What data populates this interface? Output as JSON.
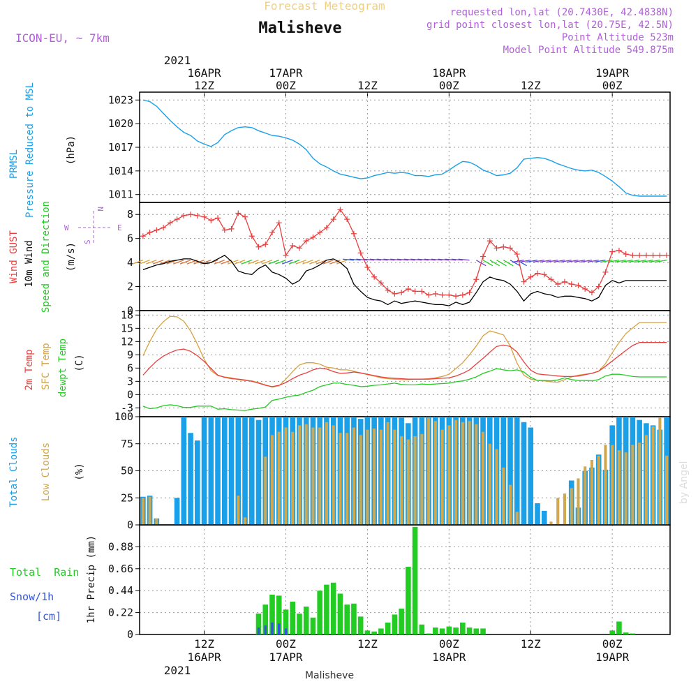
{
  "header": {
    "model": "ICON-EU, ~ 7km",
    "subtitle": "Forecast Meteogram",
    "station": "Malisheve",
    "requested": "requested lon,lat (20.7430E, 42.4838N)",
    "closest": "grid point closest lon,lat (20.75E, 42.5N)",
    "altitude": "Point Altitude 523m",
    "model_altitude": "Model Point Altitude 549.875m"
  },
  "footer_station": "Malisheve",
  "credit": "by Angel",
  "colors": {
    "pressure": "#19a0e8",
    "gust": "#e84040",
    "wind": "#000000",
    "temp2m": "#e84040",
    "sfc": "#d8a040",
    "dewpt": "#22cc22",
    "total_cloud": "#1aa0e8",
    "low_cloud": "#d0a850",
    "rain": "#22cc22",
    "snow": "#3355dd",
    "header_purple": "#b060d8",
    "subtitle": "#f0d080"
  },
  "top_axis": {
    "year": "2021",
    "labels": [
      {
        "t": 9,
        "l1": "16APR",
        "l2": "12Z"
      },
      {
        "t": 21,
        "l1": "17APR",
        "l2": "00Z"
      },
      {
        "t": 33,
        "l1": "",
        "l2": "12Z"
      },
      {
        "t": 45,
        "l1": "18APR",
        "l2": "00Z"
      },
      {
        "t": 57,
        "l1": "",
        "l2": "12Z"
      },
      {
        "t": 69,
        "l1": "19APR",
        "l2": "00Z"
      }
    ]
  },
  "bottom_axis": {
    "year": "2021",
    "labels": [
      {
        "t": 9,
        "l1": "12Z",
        "l2": "16APR"
      },
      {
        "t": 21,
        "l1": "00Z",
        "l2": "17APR"
      },
      {
        "t": 33,
        "l1": "12Z",
        "l2": ""
      },
      {
        "t": 45,
        "l1": "00Z",
        "l2": "18APR"
      },
      {
        "t": 57,
        "l1": "12Z",
        "l2": ""
      },
      {
        "t": 69,
        "l1": "00Z",
        "l2": "19APR"
      }
    ]
  },
  "panels": {
    "pressure": {
      "label_lines": [
        "PRMSL",
        "Pressure Reduced to MSL"
      ],
      "unit": "(hPa)"
    },
    "wind": {
      "label_gust": "Wind GUST",
      "label_wind": "10m Wind",
      "label_dir": "Speed and Direction",
      "unit": "(m/s)",
      "compass_n": "N",
      "compass_s": "S",
      "compass_w": "W",
      "compass_e": "E"
    },
    "temp": {
      "label_2m": "2m Temp",
      "label_sfc": "SFC Temp",
      "label_dew": "dewpt Temp",
      "unit": "(C)"
    },
    "cloud": {
      "label_total": "Total Clouds",
      "label_low": "Low Clouds",
      "unit": "(%)"
    },
    "precip": {
      "label_rain": "Total  Rain",
      "label_snow": "Snow/1h",
      "label_snow_unit": "[cm]",
      "unit": "1hr Precip (mm)"
    }
  },
  "chart_data": [
    {
      "type": "line",
      "title": "PRMSL Pressure Reduced to MSL",
      "ylabel": "(hPa)",
      "ylim": [
        1010,
        1024
      ],
      "yticks": [
        1011,
        1014,
        1017,
        1020,
        1023
      ],
      "x_start_hour_utc": 0,
      "x_step_hours": 1,
      "series": [
        {
          "name": "PRMSL",
          "x": [
            0,
            1,
            2,
            3,
            4,
            5,
            6,
            7,
            8,
            9,
            10,
            11,
            12,
            13,
            14,
            15,
            16,
            17,
            18,
            19,
            20,
            21,
            22,
            23,
            24,
            25,
            26,
            27,
            28,
            29,
            30,
            31,
            32,
            33,
            34,
            35,
            36,
            37,
            38,
            39,
            40,
            41,
            42,
            43,
            44,
            45,
            46,
            47,
            48,
            49,
            50,
            51,
            52,
            53,
            54,
            55,
            56,
            57,
            58,
            59,
            60,
            61,
            62,
            63,
            64,
            65,
            66,
            67,
            68,
            69,
            70,
            71,
            72,
            73,
            74,
            75,
            76,
            77
          ],
          "values": [
            1023,
            1022.8,
            1022.2,
            1021.3,
            1020.4,
            1019.6,
            1018.9,
            1018.5,
            1017.8,
            1017.4,
            1017.1,
            1017.6,
            1018.6,
            1019.1,
            1019.5,
            1019.6,
            1019.5,
            1019.1,
            1018.8,
            1018.5,
            1018.4,
            1018.2,
            1017.9,
            1017.4,
            1016.7,
            1015.6,
            1014.9,
            1014.5,
            1014,
            1013.6,
            1013.4,
            1013.2,
            1013,
            1013.1,
            1013.4,
            1013.6,
            1013.8,
            1013.7,
            1013.8,
            1013.7,
            1013.4,
            1013.4,
            1013.3,
            1013.5,
            1013.6,
            1014.1,
            1014.7,
            1015.2,
            1015.1,
            1014.7,
            1014.1,
            1013.8,
            1013.4,
            1013.5,
            1013.7,
            1014.4,
            1015.5,
            1015.6,
            1015.7,
            1015.6,
            1015.3,
            1014.9,
            1014.6,
            1014.3,
            1014.1,
            1014,
            1014.1,
            1013.8,
            1013.3,
            1012.7,
            1012,
            1011.2,
            1010.9,
            1010.8,
            1010.8,
            1010.8,
            1010.8,
            1010.8
          ]
        }
      ]
    },
    {
      "type": "line",
      "title": "Wind GUST / 10m Wind Speed and Direction",
      "ylabel": "(m/s)",
      "ylim": [
        0,
        9
      ],
      "yticks": [
        0,
        2,
        4,
        6,
        8
      ],
      "series": [
        {
          "name": "Wind GUST",
          "values": [
            6.2,
            6.5,
            6.7,
            6.9,
            7.3,
            7.6,
            7.9,
            8,
            7.9,
            7.8,
            7.5,
            7.7,
            6.7,
            6.8,
            8.1,
            7.8,
            6.2,
            5.3,
            5.5,
            6.5,
            7.3,
            4.6,
            5.4,
            5.2,
            5.8,
            6.1,
            6.5,
            6.9,
            7.6,
            8.4,
            7.6,
            6.4,
            4.8,
            3.6,
            2.8,
            2.3,
            1.7,
            1.4,
            1.5,
            1.8,
            1.6,
            1.6,
            1.3,
            1.4,
            1.3,
            1.3,
            1.2,
            1.3,
            1.5,
            2.6,
            4.5,
            5.8,
            5.2,
            5.3,
            5.2,
            4.7,
            2.4,
            2.8,
            3.1,
            3,
            2.6,
            2.2,
            2.4,
            2.2,
            2.1,
            1.8,
            1.5,
            2,
            3.2,
            4.9,
            5,
            4.7,
            4.6,
            4.6,
            4.6,
            4.6,
            4.6,
            4.6
          ]
        },
        {
          "name": "10m Wind",
          "values": [
            3.4,
            3.6,
            3.8,
            3.9,
            4.1,
            4.2,
            4.3,
            4.3,
            4.1,
            3.9,
            4.0,
            4.3,
            4.6,
            4.1,
            3.3,
            3.1,
            3.0,
            3.5,
            3.8,
            3.2,
            3.0,
            2.7,
            2.2,
            2.5,
            3.3,
            3.5,
            3.8,
            4.2,
            4.3,
            4.0,
            3.5,
            2.2,
            1.6,
            1.1,
            0.9,
            0.8,
            0.5,
            0.8,
            0.6,
            0.7,
            0.8,
            0.7,
            0.6,
            0.5,
            0.5,
            0.4,
            0.7,
            0.5,
            0.7,
            1.5,
            2.4,
            2.8,
            2.6,
            2.5,
            2.2,
            1.6,
            0.8,
            1.4,
            1.6,
            1.4,
            1.3,
            1.1,
            1.2,
            1.2,
            1.1,
            1.0,
            0.8,
            1.1,
            2.1,
            2.5,
            2.3,
            2.5,
            2.5,
            2.5,
            2.5,
            2.5,
            2.5,
            2.5
          ]
        }
      ]
    },
    {
      "type": "line",
      "title": "2m Temp / SFC Temp / dewpt Temp",
      "ylabel": "(C)",
      "ylim": [
        -5,
        19
      ],
      "yticks": [
        -3,
        0,
        3,
        6,
        9,
        12,
        15,
        18
      ],
      "series": [
        {
          "name": "2m Temp",
          "values": [
            4.4,
            6.1,
            7.6,
            8.7,
            9.5,
            10.1,
            10.3,
            9.8,
            8.8,
            7.5,
            5.9,
            4.4,
            3.9,
            3.6,
            3.5,
            3.3,
            3.0,
            2.6,
            2.1,
            1.8,
            2.1,
            2.7,
            3.6,
            4.4,
            4.9,
            5.6,
            6.0,
            5.8,
            5.2,
            4.8,
            4.9,
            5.1,
            4.9,
            4.6,
            4.3,
            4.0,
            3.8,
            3.7,
            3.6,
            3.5,
            3.5,
            3.5,
            3.5,
            3.6,
            3.7,
            3.8,
            4.2,
            4.8,
            5.6,
            6.9,
            8.2,
            9.6,
            10.9,
            11.2,
            10.9,
            9.6,
            7.4,
            5.5,
            4.7,
            4.5,
            4.4,
            4.2,
            4.1,
            4.1,
            4.2,
            4.5,
            4.8,
            5.3,
            6.4,
            7.6,
            8.8,
            10.0,
            11.1,
            11.8,
            11.8,
            11.8,
            11.8,
            11.8
          ]
        },
        {
          "name": "SFC Temp",
          "values": [
            8.8,
            12.0,
            14.8,
            16.5,
            17.7,
            17.6,
            16.6,
            14.4,
            11.4,
            8.0,
            5.4,
            4.3,
            4.0,
            3.8,
            3.4,
            3.2,
            3.1,
            2.7,
            2.2,
            1.7,
            2.0,
            3.5,
            5.2,
            6.7,
            7.2,
            7.2,
            6.9,
            6.2,
            6.0,
            5.6,
            5.6,
            5.3,
            4.9,
            4.5,
            4.2,
            3.8,
            3.6,
            3.5,
            3.4,
            3.4,
            3.5,
            3.5,
            3.6,
            3.8,
            4.1,
            4.6,
            5.9,
            7.2,
            9.0,
            11.0,
            13.3,
            14.4,
            14.0,
            13.5,
            11.0,
            7.1,
            4.4,
            3.5,
            3.2,
            3.1,
            2.9,
            2.8,
            3.4,
            4.0,
            4.4,
            4.6,
            4.8,
            5.3,
            7.0,
            9.5,
            11.8,
            13.8,
            15.1,
            16.3,
            16.3,
            16.3,
            16.3,
            16.3
          ]
        },
        {
          "name": "dewpt Temp",
          "values": [
            -2.6,
            -3.2,
            -3.0,
            -2.5,
            -2.3,
            -2.5,
            -2.9,
            -2.9,
            -2.6,
            -2.6,
            -2.6,
            -3.3,
            -3.2,
            -3.4,
            -3.5,
            -3.6,
            -3.3,
            -3.1,
            -2.8,
            -1.3,
            -1.0,
            -0.6,
            -0.3,
            -0.1,
            0.5,
            1.0,
            1.8,
            2.2,
            2.6,
            2.6,
            2.3,
            2.1,
            1.8,
            1.9,
            2.1,
            2.2,
            2.4,
            2.6,
            2.3,
            2.2,
            2.2,
            2.4,
            2.3,
            2.4,
            2.5,
            2.6,
            2.9,
            3.1,
            3.5,
            4.0,
            4.8,
            5.3,
            5.9,
            5.6,
            5.4,
            5.6,
            5.1,
            3.9,
            3.2,
            3.2,
            3.1,
            3.3,
            3.8,
            3.4,
            3.2,
            3.2,
            3.1,
            3.4,
            4.2,
            4.6,
            4.6,
            4.4,
            4.1,
            4.0,
            4.0,
            4.0,
            4.0,
            4.0
          ]
        }
      ]
    },
    {
      "type": "bar",
      "title": "Total Clouds / Low Clouds",
      "ylabel": "(%)",
      "ylim": [
        0,
        100
      ],
      "yticks": [
        0,
        25,
        50,
        75,
        100
      ],
      "series": [
        {
          "name": "Total Clouds",
          "values": [
            26,
            27,
            6,
            0,
            0,
            25,
            100,
            85,
            78,
            100,
            100,
            100,
            100,
            100,
            100,
            100,
            100,
            97,
            100,
            100,
            100,
            100,
            100,
            100,
            100,
            100,
            100,
            100,
            100,
            100,
            100,
            100,
            98,
            100,
            100,
            100,
            100,
            100,
            99,
            94,
            100,
            100,
            100,
            100,
            100,
            100,
            100,
            100,
            100,
            100,
            100,
            100,
            100,
            100,
            100,
            100,
            95,
            90,
            20,
            13,
            0,
            0,
            0,
            41,
            16,
            50,
            53,
            65,
            51,
            92,
            100,
            100,
            100,
            97,
            94,
            92,
            88,
            100
          ]
        },
        {
          "name": "Low Clouds",
          "values": [
            25,
            26,
            6,
            0,
            0,
            0,
            0,
            0,
            0,
            0,
            0,
            0,
            0,
            0,
            27,
            7,
            0,
            0,
            63,
            83,
            86,
            90,
            86,
            92,
            93,
            90,
            90,
            95,
            92,
            85,
            85,
            90,
            83,
            88,
            89,
            88,
            95,
            88,
            82,
            79,
            82,
            84,
            99,
            96,
            88,
            92,
            97,
            95,
            96,
            93,
            86,
            75,
            70,
            53,
            37,
            12,
            0,
            0,
            0,
            0,
            3,
            25,
            29,
            34,
            43,
            54,
            60,
            64,
            74,
            74,
            69,
            67,
            74,
            76,
            83,
            91,
            99,
            64
          ]
        },
        {
          "name": "Snow/1h [cm]",
          "values": [
            0,
            0,
            0,
            0,
            0,
            0,
            0,
            0,
            0,
            0,
            0,
            0,
            0,
            0,
            0,
            0,
            0,
            0.07,
            0.09,
            0.12,
            0.11,
            0.06,
            0,
            0,
            0,
            0,
            0,
            0,
            0,
            0,
            0,
            0,
            0,
            0,
            0,
            0,
            0,
            0,
            0,
            0,
            0,
            0,
            0,
            0,
            0,
            0,
            0,
            0,
            0,
            0,
            0,
            0,
            0,
            0,
            0,
            0,
            0,
            0,
            0,
            0,
            0,
            0,
            0,
            0,
            0,
            0,
            0,
            0,
            0,
            0,
            0,
            0,
            0,
            0,
            0,
            0,
            0,
            0
          ]
        }
      ]
    },
    {
      "type": "bar",
      "title": "1hr Precip (mm)",
      "ylabel": "1hr Precip (mm)",
      "ylim": [
        0,
        1.1
      ],
      "yticks": [
        0,
        0.22,
        0.44,
        0.66,
        0.88
      ],
      "series": [
        {
          "name": "Total Rain",
          "values": [
            0,
            0,
            0,
            0,
            0,
            0,
            0,
            0,
            0,
            0,
            0,
            0,
            0,
            0,
            0,
            0,
            0,
            0.21,
            0.3,
            0.4,
            0.39,
            0.25,
            0.33,
            0.21,
            0.28,
            0.17,
            0.44,
            0.5,
            0.52,
            0.41,
            0.3,
            0.31,
            0.18,
            0.04,
            0.03,
            0.06,
            0.12,
            0.2,
            0.26,
            0.68,
            1.08,
            0.1,
            0.01,
            0.07,
            0.06,
            0.08,
            0.07,
            0.12,
            0.07,
            0.06,
            0.06,
            0,
            0,
            0,
            0,
            0,
            0,
            0,
            0,
            0,
            0,
            0,
            0,
            0,
            0,
            0,
            0,
            0,
            0,
            0.04,
            0.13,
            0.02,
            0.01,
            0,
            0,
            0,
            0,
            0
          ]
        }
      ]
    }
  ]
}
